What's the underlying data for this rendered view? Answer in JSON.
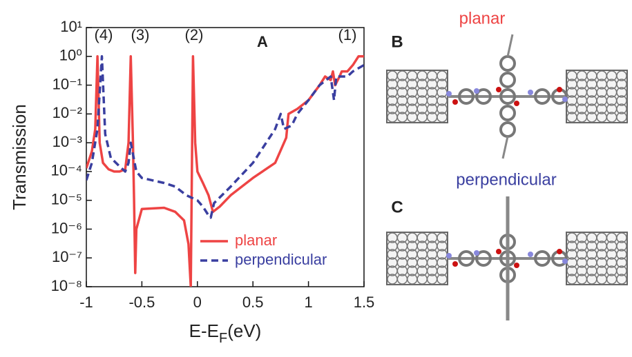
{
  "chart_data": {
    "type": "line",
    "title": "A",
    "y_label": "Transmission",
    "x_label": [
      "E-E",
      "F",
      "(eV)"
    ],
    "annotations": [
      "(4)",
      "(3)",
      "(2)",
      "(1)"
    ],
    "xlim": [
      -1,
      1.5
    ],
    "xticks": [
      -1,
      -0.5,
      0,
      0.5,
      1,
      1.5
    ],
    "ylim": [
      1e-08,
      10
    ],
    "log_y": true,
    "yticks": [
      {
        "value": 10,
        "label": "10¹"
      },
      {
        "value": 1,
        "label": "10⁰"
      },
      {
        "value": 0.1,
        "label": "10⁻¹"
      },
      {
        "value": 0.01,
        "label": "10⁻²"
      },
      {
        "value": 0.001,
        "label": "10⁻³"
      },
      {
        "value": 0.0001,
        "label": "10⁻⁴"
      },
      {
        "value": 1e-05,
        "label": "10⁻⁵"
      },
      {
        "value": 1e-06,
        "label": "10⁻⁶"
      },
      {
        "value": 1e-07,
        "label": "10⁻⁷"
      },
      {
        "value": 1e-08,
        "label": "10⁻⁸"
      }
    ],
    "legend": "lower right",
    "series": [
      {
        "name": "planar",
        "color": "#ee4444",
        "dash": false,
        "x": [
          -1,
          -0.95,
          -0.92,
          -0.9,
          -0.88,
          -0.85,
          -0.8,
          -0.75,
          -0.7,
          -0.65,
          -0.62,
          -0.6,
          -0.58,
          -0.57,
          -0.56,
          -0.55,
          -0.5,
          -0.3,
          -0.2,
          -0.12,
          -0.08,
          -0.06,
          -0.04,
          -0.02,
          0,
          0.05,
          0.1,
          0.14,
          0.2,
          0.3,
          0.5,
          0.7,
          0.8,
          0.82,
          0.9,
          1,
          1.1,
          1.15,
          1.2,
          1.22,
          1.24,
          1.28,
          1.3,
          1.35,
          1.4,
          1.45,
          1.5
        ],
        "values": [
          0.00013,
          0.0005,
          0.003,
          1,
          0.001,
          0.0002,
          0.00012,
          0.0001,
          0.0001,
          0.00012,
          0.001,
          1,
          0.001,
          1e-05,
          3e-08,
          1e-06,
          5e-06,
          5.5e-06,
          4e-06,
          2e-06,
          3e-07,
          1e-08,
          1,
          0.001,
          0.0001,
          4e-05,
          1.5e-05,
          4e-06,
          6e-06,
          1.5e-05,
          6e-05,
          0.0002,
          0.0015,
          0.01,
          0.015,
          0.03,
          0.1,
          0.2,
          0.15,
          0.3,
          0.1,
          0.2,
          0.3,
          0.3,
          0.5,
          1,
          1
        ]
      },
      {
        "name": "perpendicular",
        "color": "#3a3fa0",
        "dash": true,
        "x": [
          -1,
          -0.95,
          -0.9,
          -0.86,
          -0.83,
          -0.78,
          -0.7,
          -0.65,
          -0.62,
          -0.6,
          -0.55,
          -0.5,
          -0.3,
          -0.2,
          -0.1,
          0,
          0.05,
          0.1,
          0.12,
          0.15,
          0.3,
          0.5,
          0.7,
          0.75,
          0.78,
          0.85,
          0.9,
          1,
          1.1,
          1.2,
          1.23,
          1.25,
          1.35,
          1.4,
          1.5
        ],
        "values": [
          5e-05,
          0.0002,
          0.003,
          1,
          0.002,
          0.0003,
          0.00015,
          0.0001,
          0.0002,
          0.001,
          0.0001,
          6e-05,
          4e-05,
          3e-05,
          1.5e-05,
          1e-05,
          6e-06,
          3e-06,
          2.5e-06,
          8e-06,
          3e-05,
          0.0002,
          0.003,
          0.01,
          0.003,
          0.004,
          0.01,
          0.03,
          0.1,
          0.2,
          0.03,
          0.2,
          0.2,
          0.3,
          0.5
        ]
      }
    ]
  },
  "panels": [
    {
      "label": "B",
      "title": "planar"
    },
    {
      "label": "C",
      "title": "perpendicular"
    }
  ]
}
